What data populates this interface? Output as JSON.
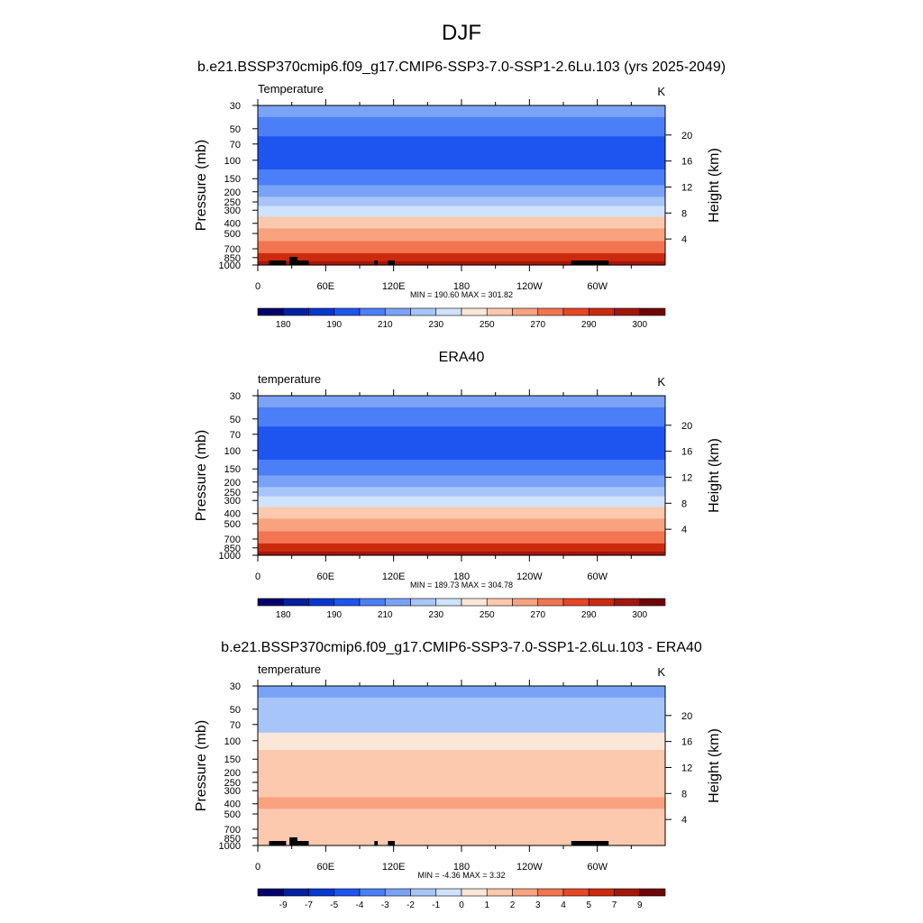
{
  "page": {
    "main_title": "DJF",
    "colors": {
      "terrain": "#000000",
      "axis": "#000000"
    }
  },
  "chart_data": [
    {
      "type": "heatmap",
      "title": "b.e21.BSSP370cmip6.f09_g17.CMIP6-SSP3-7.0-SSP1-2.6Lu.103 (yrs 2025-2049)",
      "variable_label": "Temperature",
      "units": "K",
      "xlabel": "",
      "ylabel": "Pressure (mb)",
      "ylabel_right": "Height (km)",
      "x_ticks": [
        "0",
        "60E",
        "120E",
        "180",
        "120W",
        "60W"
      ],
      "x_tick_lon": [
        0,
        60,
        120,
        180,
        240,
        300
      ],
      "xlim": [
        0,
        360
      ],
      "pressure_ticks": [
        30,
        50,
        70,
        100,
        150,
        200,
        250,
        300,
        400,
        500,
        700,
        850,
        1000
      ],
      "ylim": [
        1000,
        30
      ],
      "height_ticks_km": [
        4,
        8,
        12,
        16,
        20
      ],
      "min_max_text": "MIN = 190.60  MAX = 301.82",
      "min": 190.6,
      "max": 301.82,
      "colorbar": {
        "colors": [
          "#03006b",
          "#0420a0",
          "#0637cf",
          "#1e55f0",
          "#4a7ff7",
          "#7aa3f8",
          "#a8c5fa",
          "#cfe3fc",
          "#fbe6d8",
          "#fcc9ae",
          "#f9a27f",
          "#f27451",
          "#e74625",
          "#cc2a0e",
          "#a3170a",
          "#6e0508"
        ],
        "labels": [
          "180",
          "190",
          "210",
          "230",
          "250",
          "270",
          "290",
          "300"
        ]
      },
      "profile": [
        {
          "p": 30,
          "value": 212
        },
        {
          "p": 50,
          "value": 208
        },
        {
          "p": 70,
          "value": 199
        },
        {
          "p": 100,
          "value": 199
        },
        {
          "p": 150,
          "value": 206
        },
        {
          "p": 200,
          "value": 215
        },
        {
          "p": 250,
          "value": 225
        },
        {
          "p": 300,
          "value": 238
        },
        {
          "p": 400,
          "value": 252
        },
        {
          "p": 500,
          "value": 262
        },
        {
          "p": 700,
          "value": 278
        },
        {
          "p": 850,
          "value": 290
        },
        {
          "p": 1000,
          "value": 298
        }
      ],
      "terrain": [
        [
          10,
          25
        ],
        [
          28,
          35
        ],
        [
          35,
          45
        ],
        [
          103,
          106
        ],
        [
          115,
          121
        ],
        [
          277,
          310
        ]
      ]
    },
    {
      "type": "heatmap",
      "title": "ERA40",
      "variable_label": "temperature",
      "units": "K",
      "xlabel": "",
      "ylabel": "Pressure (mb)",
      "ylabel_right": "Height (km)",
      "x_ticks": [
        "0",
        "60E",
        "120E",
        "180",
        "120W",
        "60W"
      ],
      "x_tick_lon": [
        0,
        60,
        120,
        180,
        240,
        300
      ],
      "xlim": [
        0,
        360
      ],
      "pressure_ticks": [
        30,
        50,
        70,
        100,
        150,
        200,
        250,
        300,
        400,
        500,
        700,
        850,
        1000
      ],
      "ylim": [
        1000,
        30
      ],
      "height_ticks_km": [
        4,
        8,
        12,
        16,
        20
      ],
      "min_max_text": "MIN = 189.73  MAX = 304.78",
      "min": 189.73,
      "max": 304.78,
      "colorbar": {
        "colors": [
          "#03006b",
          "#0420a0",
          "#0637cf",
          "#1e55f0",
          "#4a7ff7",
          "#7aa3f8",
          "#a8c5fa",
          "#cfe3fc",
          "#fbe6d8",
          "#fcc9ae",
          "#f9a27f",
          "#f27451",
          "#e74625",
          "#cc2a0e",
          "#a3170a",
          "#6e0508"
        ],
        "labels": [
          "180",
          "190",
          "210",
          "230",
          "250",
          "270",
          "290",
          "300"
        ]
      },
      "profile": [
        {
          "p": 30,
          "value": 212
        },
        {
          "p": 50,
          "value": 207
        },
        {
          "p": 70,
          "value": 199
        },
        {
          "p": 100,
          "value": 199
        },
        {
          "p": 150,
          "value": 206
        },
        {
          "p": 200,
          "value": 214
        },
        {
          "p": 250,
          "value": 225
        },
        {
          "p": 300,
          "value": 237
        },
        {
          "p": 400,
          "value": 252
        },
        {
          "p": 500,
          "value": 262
        },
        {
          "p": 700,
          "value": 278
        },
        {
          "p": 850,
          "value": 290
        },
        {
          "p": 1000,
          "value": 300
        }
      ],
      "terrain": []
    },
    {
      "type": "heatmap",
      "title": "b.e21.BSSP370cmip6.f09_g17.CMIP6-SSP3-7.0-SSP1-2.6Lu.103 - ERA40",
      "variable_label": "temperature",
      "units": "K",
      "xlabel": "",
      "ylabel": "Pressure (mb)",
      "ylabel_right": "Height (km)",
      "x_ticks": [
        "0",
        "60E",
        "120E",
        "180",
        "120W",
        "60W"
      ],
      "x_tick_lon": [
        0,
        60,
        120,
        180,
        240,
        300
      ],
      "xlim": [
        0,
        360
      ],
      "pressure_ticks": [
        30,
        50,
        70,
        100,
        150,
        200,
        250,
        300,
        400,
        500,
        700,
        850,
        1000
      ],
      "ylim": [
        1000,
        30
      ],
      "height_ticks_km": [
        4,
        8,
        12,
        16,
        20
      ],
      "min_max_text": "MIN =  -4.36  MAX =   3.32",
      "min": -4.36,
      "max": 3.32,
      "colorbar": {
        "colors": [
          "#03006b",
          "#0420a0",
          "#0637cf",
          "#1e55f0",
          "#4a7ff7",
          "#7aa3f8",
          "#a8c5fa",
          "#cfe3fc",
          "#fbe6d8",
          "#fcc9ae",
          "#f9a27f",
          "#f27451",
          "#e74625",
          "#cc2a0e",
          "#a3170a",
          "#6e0508"
        ],
        "labels": [
          "-9",
          "-7",
          "-5",
          "-4",
          "-3",
          "-2",
          "-1",
          "0",
          "1",
          "2",
          "3",
          "4",
          "5",
          "7",
          "9"
        ]
      },
      "profile": [
        {
          "p": 30,
          "value": -2.5
        },
        {
          "p": 50,
          "value": -1.5
        },
        {
          "p": 70,
          "value": -1.5
        },
        {
          "p": 100,
          "value": 0.5
        },
        {
          "p": 150,
          "value": 1.2
        },
        {
          "p": 200,
          "value": 1.5
        },
        {
          "p": 250,
          "value": 1.5
        },
        {
          "p": 300,
          "value": 1.7
        },
        {
          "p": 400,
          "value": 2.2
        },
        {
          "p": 500,
          "value": 1.8
        },
        {
          "p": 700,
          "value": 1.2
        },
        {
          "p": 850,
          "value": 1.3
        },
        {
          "p": 1000,
          "value": 1.8
        }
      ],
      "terrain": [
        [
          10,
          25
        ],
        [
          28,
          35
        ],
        [
          35,
          45
        ],
        [
          103,
          106
        ],
        [
          115,
          121
        ],
        [
          277,
          310
        ]
      ]
    }
  ]
}
